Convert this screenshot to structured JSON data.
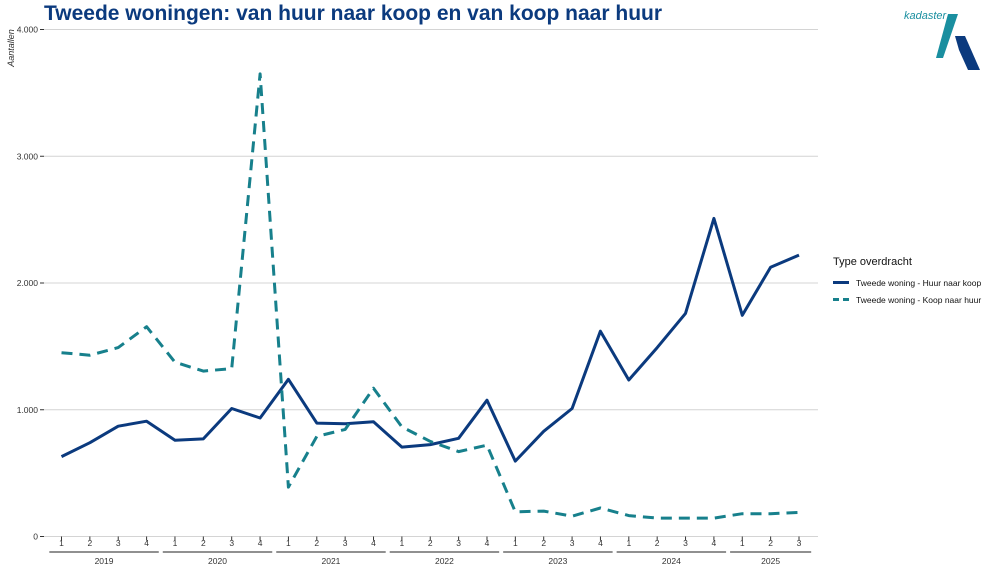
{
  "title": "Tweede woningen: van huur naar koop en van koop naar huur",
  "logo": {
    "text": "kadaster",
    "colors": {
      "teal": "#1a8fa0",
      "navy": "#0b3a7e"
    }
  },
  "legend": {
    "title": "Type overdracht",
    "items": [
      {
        "label": "Tweede woning - Huur naar koop",
        "color": "#0b3a7e",
        "dash": "solid"
      },
      {
        "label": "Tweede woning - Koop naar huur",
        "color": "#17808c",
        "dash": "dashed"
      }
    ]
  },
  "chart_data": {
    "type": "line",
    "ylabel": "Aantallen",
    "xlabel": "",
    "ylim": [
      0,
      4000
    ],
    "yticks": [
      0,
      1000,
      2000,
      3000,
      4000
    ],
    "ytick_labels": [
      "0",
      "1.000",
      "2.000",
      "3.000",
      "4.000"
    ],
    "grid": "horizontal",
    "legend_position": "right",
    "years": [
      "2019",
      "2020",
      "2021",
      "2022",
      "2023",
      "2024",
      "2025"
    ],
    "quarters": [
      "1",
      "2",
      "3",
      "4",
      "1",
      "2",
      "3",
      "4",
      "1",
      "2",
      "3",
      "4",
      "1",
      "2",
      "3",
      "4",
      "1",
      "2",
      "3",
      "4",
      "1",
      "2",
      "3",
      "4",
      "1",
      "2",
      "3"
    ],
    "series": [
      {
        "name": "Tweede woning - Huur naar koop",
        "color": "#0b3a7e",
        "dash": "solid",
        "values": [
          630,
          740,
          870,
          910,
          760,
          770,
          1010,
          935,
          1240,
          895,
          890,
          905,
          705,
          725,
          775,
          1075,
          595,
          830,
          1010,
          1620,
          1235,
          1490,
          1760,
          2510,
          1745,
          2125,
          2220
        ]
      },
      {
        "name": "Tweede woning - Koop naar huur",
        "color": "#17808c",
        "dash": "dashed",
        "values": [
          1450,
          1430,
          1490,
          1655,
          1375,
          1305,
          1325,
          3650,
          390,
          790,
          845,
          1170,
          865,
          750,
          670,
          720,
          195,
          200,
          160,
          225,
          165,
          145,
          145,
          145,
          180,
          180,
          190
        ]
      }
    ]
  }
}
